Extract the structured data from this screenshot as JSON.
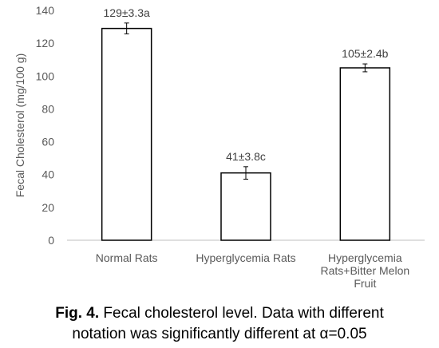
{
  "chart_data": {
    "type": "bar",
    "categories": [
      [
        "Normal Rats"
      ],
      [
        "Hyperglycemia Rats"
      ],
      [
        "Hyperglycemia",
        "Rats+Bitter Melon",
        "Fruit"
      ]
    ],
    "values": [
      129,
      41,
      105
    ],
    "errors": [
      3.3,
      3.8,
      2.4
    ],
    "data_labels": [
      "129±3.3a",
      "41±3.8c",
      "105±2.4b"
    ],
    "ylabel": "Fecal Cholesterol (mg/100 g)",
    "xlabel": "",
    "ylim": [
      0,
      140
    ],
    "yticks": [
      0,
      20,
      40,
      60,
      80,
      100,
      120,
      140
    ],
    "grid": false,
    "legend": "none",
    "bar_fill": "#ffffff",
    "bar_stroke": "#000000"
  },
  "caption": {
    "label": "Fig. 4.",
    "line1": " Fecal cholesterol level.  Data with different",
    "line2": "notation was significantly different at α=0.05"
  }
}
